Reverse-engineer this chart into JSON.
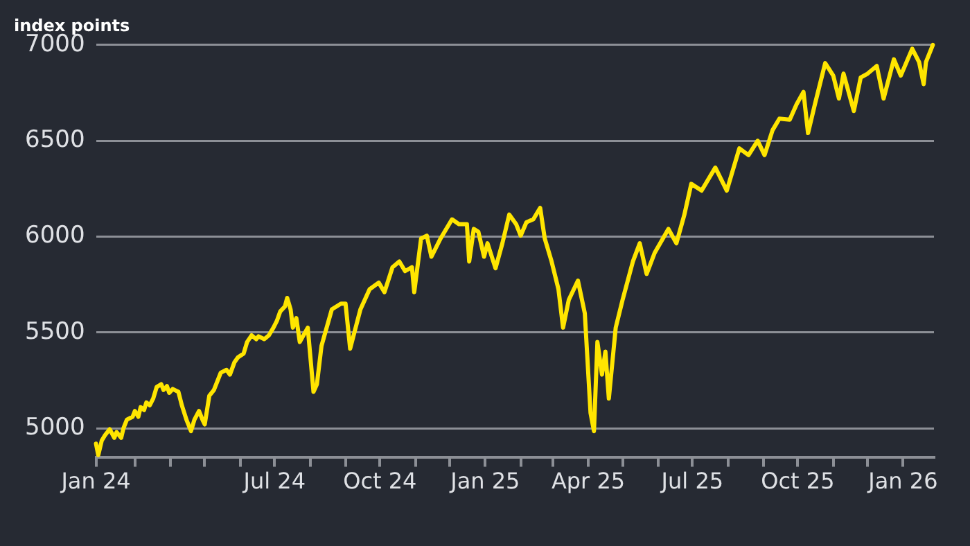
{
  "chart_data": {
    "type": "line",
    "title": "index points",
    "xlim": [
      "2024-01-27",
      "2026-01-28"
    ],
    "ylim": [
      4850,
      7000
    ],
    "yticks": [
      5000,
      5500,
      6000,
      6500,
      7000
    ],
    "xticks": [
      {
        "value": "2024-01-27",
        "label": "Jan 24"
      },
      {
        "value": "2024-03-01",
        "label": null
      },
      {
        "value": "2024-04-01",
        "label": null
      },
      {
        "value": "2024-05-01",
        "label": null
      },
      {
        "value": "2024-06-01",
        "label": null
      },
      {
        "value": "2024-07-01",
        "label": "Jul 24"
      },
      {
        "value": "2024-08-01",
        "label": null
      },
      {
        "value": "2024-09-01",
        "label": null
      },
      {
        "value": "2024-10-01",
        "label": "Oct 24"
      },
      {
        "value": "2024-11-01",
        "label": null
      },
      {
        "value": "2024-12-01",
        "label": null
      },
      {
        "value": "2025-01-01",
        "label": "Jan 25"
      },
      {
        "value": "2025-02-01",
        "label": null
      },
      {
        "value": "2025-03-01",
        "label": null
      },
      {
        "value": "2025-04-01",
        "label": "Apr 25"
      },
      {
        "value": "2025-05-01",
        "label": null
      },
      {
        "value": "2025-06-01",
        "label": null
      },
      {
        "value": "2025-07-01",
        "label": "Jul 25"
      },
      {
        "value": "2025-08-01",
        "label": null
      },
      {
        "value": "2025-09-01",
        "label": null
      },
      {
        "value": "2025-10-01",
        "label": "Oct 25"
      },
      {
        "value": "2025-11-01",
        "label": null
      },
      {
        "value": "2025-12-01",
        "label": null
      },
      {
        "value": "2026-01-01",
        "label": "Jan 26"
      }
    ],
    "grid": "y",
    "legend": false,
    "marker": "none",
    "line_style": "solid",
    "series": [
      {
        "color": "#ffe500",
        "x": [
          "2024-01-27",
          "2024-01-29",
          "2024-02-01",
          "2024-02-04",
          "2024-02-08",
          "2024-02-12",
          "2024-02-14",
          "2024-02-18",
          "2024-02-20",
          "2024-02-23",
          "2024-02-28",
          "2024-03-01",
          "2024-03-04",
          "2024-03-06",
          "2024-03-09",
          "2024-03-11",
          "2024-03-14",
          "2024-03-17",
          "2024-03-20",
          "2024-03-24",
          "2024-03-26",
          "2024-03-29",
          "2024-03-31",
          "2024-04-03",
          "2024-04-08",
          "2024-04-11",
          "2024-04-15",
          "2024-04-19",
          "2024-04-22",
          "2024-04-26",
          "2024-04-29",
          "2024-05-01",
          "2024-05-05",
          "2024-05-09",
          "2024-05-12",
          "2024-05-15",
          "2024-05-20",
          "2024-05-23",
          "2024-05-27",
          "2024-05-30",
          "2024-06-04",
          "2024-06-07",
          "2024-06-11",
          "2024-06-15",
          "2024-06-17",
          "2024-06-22",
          "2024-06-26",
          "2024-06-30",
          "2024-07-03",
          "2024-07-06",
          "2024-07-10",
          "2024-07-12",
          "2024-07-15",
          "2024-07-17",
          "2024-07-20",
          "2024-07-23",
          "2024-07-30",
          "2024-08-04",
          "2024-08-07",
          "2024-08-11",
          "2024-08-20",
          "2024-08-28",
          "2024-09-01",
          "2024-09-05",
          "2024-09-14",
          "2024-09-22",
          "2024-09-30",
          "2024-10-05",
          "2024-10-12",
          "2024-10-18",
          "2024-10-23",
          "2024-10-29",
          "2024-10-31",
          "2024-11-06",
          "2024-11-11",
          "2024-11-15",
          "2024-11-23",
          "2024-12-03",
          "2024-12-09",
          "2024-12-16",
          "2024-12-18",
          "2024-12-22",
          "2024-12-26",
          "2024-12-31",
          "2025-01-03",
          "2025-01-10",
          "2025-01-16",
          "2025-01-22",
          "2025-01-28",
          "2025-02-01",
          "2025-02-06",
          "2025-02-12",
          "2025-02-18",
          "2025-02-22",
          "2025-02-28",
          "2025-03-06",
          "2025-03-10",
          "2025-03-15",
          "2025-03-23",
          "2025-03-29",
          "2025-04-03",
          "2025-04-06",
          "2025-04-09",
          "2025-04-13",
          "2025-04-16",
          "2025-04-19",
          "2025-04-25",
          "2025-05-01",
          "2025-05-10",
          "2025-05-16",
          "2025-05-22",
          "2025-05-29",
          "2025-06-10",
          "2025-06-17",
          "2025-06-24",
          "2025-06-30",
          "2025-07-09",
          "2025-07-21",
          "2025-07-31",
          "2025-08-11",
          "2025-08-19",
          "2025-08-27",
          "2025-09-02",
          "2025-09-09",
          "2025-09-15",
          "2025-09-24",
          "2025-09-30",
          "2025-10-06",
          "2025-10-10",
          "2025-10-16",
          "2025-10-25",
          "2025-11-01",
          "2025-11-06",
          "2025-11-10",
          "2025-11-19",
          "2025-11-25",
          "2025-12-01",
          "2025-12-09",
          "2025-12-15",
          "2025-12-24",
          "2025-12-30",
          "2026-01-09",
          "2026-01-15",
          "2026-01-19",
          "2026-01-21",
          "2026-01-27"
        ],
        "values": [
          4920,
          4860,
          4935,
          4965,
          4995,
          4950,
          4980,
          4950,
          5000,
          5045,
          5060,
          5090,
          5060,
          5110,
          5095,
          5135,
          5120,
          5155,
          5215,
          5230,
          5200,
          5220,
          5185,
          5205,
          5190,
          5120,
          5045,
          4985,
          5045,
          5090,
          5045,
          5020,
          5170,
          5200,
          5245,
          5290,
          5305,
          5280,
          5345,
          5370,
          5390,
          5450,
          5485,
          5465,
          5480,
          5465,
          5485,
          5525,
          5560,
          5610,
          5635,
          5680,
          5620,
          5525,
          5575,
          5450,
          5525,
          5190,
          5230,
          5430,
          5620,
          5650,
          5650,
          5415,
          5620,
          5725,
          5760,
          5710,
          5840,
          5870,
          5820,
          5840,
          5710,
          5990,
          6005,
          5895,
          5990,
          6090,
          6065,
          6065,
          5870,
          6040,
          6025,
          5895,
          5965,
          5835,
          5965,
          6115,
          6065,
          6005,
          6075,
          6090,
          6150,
          5990,
          5870,
          5725,
          5525,
          5670,
          5770,
          5600,
          5080,
          4985,
          5450,
          5280,
          5400,
          5155,
          5525,
          5670,
          5870,
          5965,
          5805,
          5915,
          6040,
          5965,
          6115,
          6275,
          6240,
          6360,
          6240,
          6460,
          6425,
          6500,
          6425,
          6555,
          6615,
          6610,
          6690,
          6755,
          6540,
          6690,
          6905,
          6840,
          6720,
          6850,
          6655,
          6830,
          6850,
          6890,
          6720,
          6925,
          6840,
          6980,
          6910,
          6795,
          6910,
          7000
        ]
      }
    ]
  }
}
